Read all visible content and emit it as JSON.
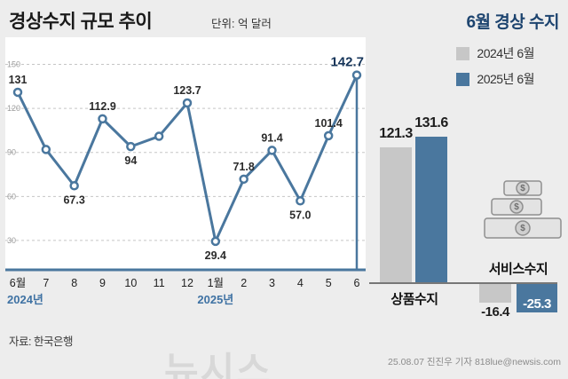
{
  "header": {
    "title": "경상수지 규모 추이",
    "unit": "단위: 억 달러",
    "right_title": "6월 경상 수지"
  },
  "legend": {
    "items": [
      {
        "label": "2024년 6월",
        "color": "#c7c7c7"
      },
      {
        "label": "2025년 6월",
        "color": "#4a779e"
      }
    ]
  },
  "chart_data": [
    {
      "type": "line",
      "title": "경상수지 규모 추이",
      "unit": "억 달러",
      "x": [
        "6월",
        "7",
        "8",
        "9",
        "10",
        "11",
        "12",
        "1월",
        "2",
        "3",
        "4",
        "5",
        "6"
      ],
      "values": [
        131,
        92,
        67.3,
        112.9,
        94,
        101,
        123.7,
        29.4,
        71.8,
        91.4,
        57.0,
        101.4,
        142.7
      ],
      "point_labels": [
        "131",
        "",
        "67.3",
        "112.9",
        "94",
        "",
        "123.7",
        "29.4",
        "71.8",
        "91.4",
        "57.0",
        "101.4",
        "142.7"
      ],
      "label_side": [
        "above",
        "none",
        "below",
        "above",
        "below",
        "none",
        "above",
        "below",
        "above",
        "above",
        "below",
        "above",
        "above"
      ],
      "yticks": [
        30,
        60,
        90,
        120,
        150
      ],
      "ylim": [
        10,
        160
      ],
      "grid": "dashed",
      "line_color": "#4a779e",
      "year_groups": [
        {
          "label": "2024년",
          "start_index": 0
        },
        {
          "label": "2025년",
          "start_index": 7
        }
      ]
    },
    {
      "type": "bar",
      "title": "6월 경상 수지",
      "categories": [
        "상품수지",
        "서비스수지"
      ],
      "series": [
        {
          "name": "2024년 6월",
          "color": "#c7c7c7",
          "values": [
            121.3,
            -16.4
          ],
          "labels": [
            "121.3",
            "-16.4"
          ]
        },
        {
          "name": "2025년 6월",
          "color": "#4a779e",
          "values": [
            131.6,
            -25.3
          ],
          "labels": [
            "131.6",
            "-25.3"
          ]
        }
      ],
      "legend_position": "top-right"
    }
  ],
  "footer": {
    "source": "자료: 한국은행",
    "credit": "25.08.07 진진우 기자 818lue@newsis.com",
    "watermark": "뉴시스"
  }
}
